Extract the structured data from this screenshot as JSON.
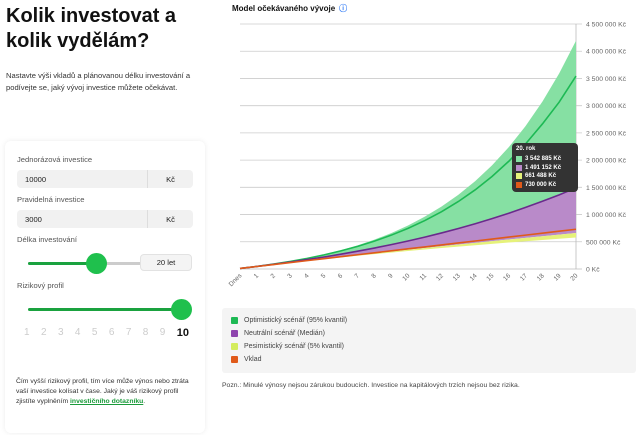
{
  "header": {
    "title": "Kolik investovat a kolik vydělám?",
    "intro": "Nastavte výši vkladů a plánovanou délku investování a podívejte se, jaký vývoj investice můžete očekávat."
  },
  "form": {
    "one_time": {
      "label": "Jednorázová investice",
      "value": "10000",
      "unit": "Kč"
    },
    "regular": {
      "label": "Pravidelná investice",
      "value": "3000",
      "unit": "Kč"
    },
    "duration": {
      "label": "Délka investování",
      "value": "20 let",
      "fraction": 0.5
    },
    "risk": {
      "label": "Rizikový profil",
      "ticks": [
        "1",
        "2",
        "3",
        "4",
        "5",
        "6",
        "7",
        "8",
        "9",
        "10"
      ],
      "selected": "10"
    },
    "note": "Čím vyšší rizikový profil, tím více může výnos nebo ztráta vaší investice kolísat v čase. Jaký je váš rizikový profil zjistíte vyplněním ",
    "note_link": "investičního dotazníku",
    "note_end": "."
  },
  "colors": {
    "optimistic": "#1db954",
    "optimistic_band": "#86e0a3",
    "neutral": "#6a2a8c",
    "neutral_band": "#b98ac9",
    "pessimistic": "#e6f27a",
    "deposit": "#e05a1a"
  },
  "chart_data": {
    "type": "area",
    "title": "Model očekávaného vývoje",
    "help_icon": "question-circle-icon",
    "x": [
      "Dnes",
      "1",
      "2",
      "3",
      "4",
      "5",
      "6",
      "7",
      "8",
      "9",
      "10",
      "11",
      "12",
      "13",
      "14",
      "15",
      "16",
      "17",
      "18",
      "19",
      "20"
    ],
    "ylim": [
      0,
      4500000
    ],
    "yticks": [
      "0 Kč",
      "500 000 Kč",
      "1 000 000 Kč",
      "1 500 000 Kč",
      "2 000 000 Kč",
      "2 500 000 Kč",
      "3 000 000 Kč",
      "3 500 000 Kč",
      "4 000 000 Kč",
      "4 500 000 Kč"
    ],
    "grid": true,
    "legend_position": "bottom",
    "series": [
      {
        "name": "Optimistický scénář (95% kvantil)",
        "color": "#1db954",
        "values": [
          10000,
          47435,
          90242,
          139192,
          195166,
          259172,
          332363,
          416057,
          511761,
          621199,
          746341,
          889441,
          1053076,
          1240192,
          1454160,
          1698832,
          1978614,
          2298545,
          2664386,
          3066000,
          3542885
        ],
        "band_upper": [
          10000,
          47570,
          91038,
          141331,
          199520,
          266845,
          344740,
          434864,
          539138,
          659783,
          799369,
          960870,
          1147727,
          1363920,
          1614055,
          1903462,
          2238306,
          2625720,
          3073958,
          3592569,
          4192602
        ]
      },
      {
        "name": "Neutrální scénář (Medián)",
        "color": "#8e44ad",
        "values": [
          10000,
          46690,
          85912,
          127840,
          172661,
          220575,
          271795,
          326549,
          385081,
          447652,
          514540,
          586043,
          662480,
          744191,
          831540,
          924916,
          1024735,
          1131442,
          1245511,
          1362000,
          1491152
        ]
      },
      {
        "name": "Pesimistický scénář (5% kvantil)",
        "color": "#d4ec5c",
        "values": [
          10000,
          45897,
          81424,
          116585,
          151384,
          185825,
          219911,
          253646,
          287033,
          320077,
          352780,
          385146,
          417179,
          448882,
          480258,
          511311,
          542044,
          572461,
          602565,
          632359,
          661488
        ],
        "band_lower": [
          10000,
          45750,
          80606,
          114591,
          147726,
          180033,
          211532,
          242244,
          272188,
          301383,
          329848,
          357602,
          384662,
          411045,
          436769,
          461850,
          486304,
          510146,
          533392,
          556057,
          578156
        ]
      },
      {
        "name": "Vklad",
        "color": "#e05a1a",
        "values": [
          10000,
          46000,
          82000,
          118000,
          154000,
          190000,
          226000,
          262000,
          298000,
          334000,
          370000,
          406000,
          442000,
          478000,
          514000,
          550000,
          586000,
          622000,
          658000,
          694000,
          730000
        ]
      }
    ],
    "tooltip": {
      "title": "20. rok",
      "rows": [
        "3 542 885 Kč",
        "1 491 152 Kč",
        "661 488 Kč",
        "730 000 Kč"
      ]
    }
  },
  "disclaimer": "Pozn.: Minulé výnosy nejsou zárukou budoucích. Investice na kapitálových trzích nejsou bez rizika."
}
